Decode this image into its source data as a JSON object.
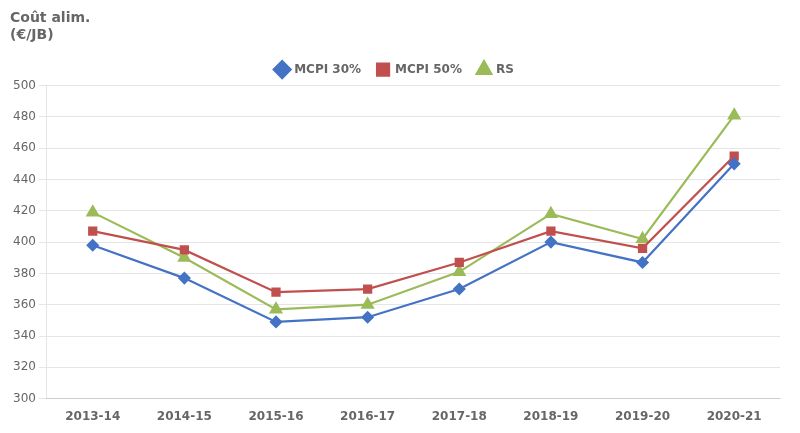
{
  "chart_data": {
    "type": "line",
    "ylabel": [
      "Coût alim.",
      "(€/JB)"
    ],
    "categories": [
      "2013-14",
      "2014-15",
      "2015-16",
      "2016-17",
      "2017-18",
      "2018-19",
      "2019-20",
      "2020-21"
    ],
    "series": [
      {
        "name": "MCPI 30%",
        "color": "#4472C4",
        "marker": "diamond",
        "values": [
          398,
          377,
          349,
          352,
          370,
          400,
          387,
          450
        ]
      },
      {
        "name": "MCPI 50%",
        "color": "#C0504D",
        "marker": "square",
        "values": [
          407,
          395,
          368,
          370,
          387,
          407,
          396,
          455
        ]
      },
      {
        "name": "RS",
        "color": "#9BBB59",
        "marker": "triangle",
        "values": [
          419,
          390,
          357,
          360,
          381,
          418,
          402,
          481
        ]
      }
    ],
    "ylim": [
      300,
      500
    ],
    "yticks": [
      300,
      320,
      340,
      360,
      380,
      400,
      420,
      440,
      460,
      480,
      500
    ],
    "grid": "y",
    "legend": "top"
  }
}
